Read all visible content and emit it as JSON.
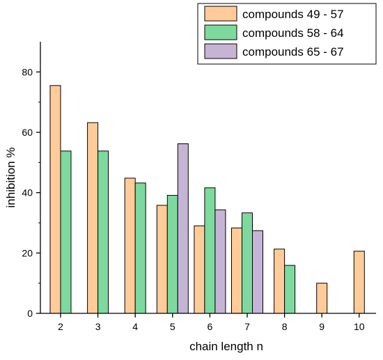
{
  "chart_data": {
    "type": "bar",
    "xlabel": "chain length n",
    "ylabel": "inhibition %",
    "ylim": [
      0,
      90
    ],
    "yticks": [
      0,
      20,
      40,
      60,
      80
    ],
    "categories": [
      "2",
      "3",
      "4",
      "5",
      "6",
      "7",
      "8",
      "9",
      "10"
    ],
    "legend_position": "top-right",
    "grid": false,
    "series": [
      {
        "name": "compounds 49 - 57",
        "color": "#FFCC99",
        "values": [
          75.5,
          63.2,
          44.8,
          35.8,
          29,
          28.3,
          21.3,
          10,
          20.6
        ]
      },
      {
        "name": "compounds 58 - 64",
        "color": "#7ED99E",
        "values": [
          53.8,
          53.8,
          43.2,
          39.1,
          41.6,
          33.3,
          15.9,
          null,
          null
        ]
      },
      {
        "name": "compounds 65 - 67",
        "color": "#C6B4D6",
        "values": [
          null,
          null,
          null,
          56.2,
          34.3,
          27.4,
          null,
          null,
          null
        ]
      }
    ]
  }
}
